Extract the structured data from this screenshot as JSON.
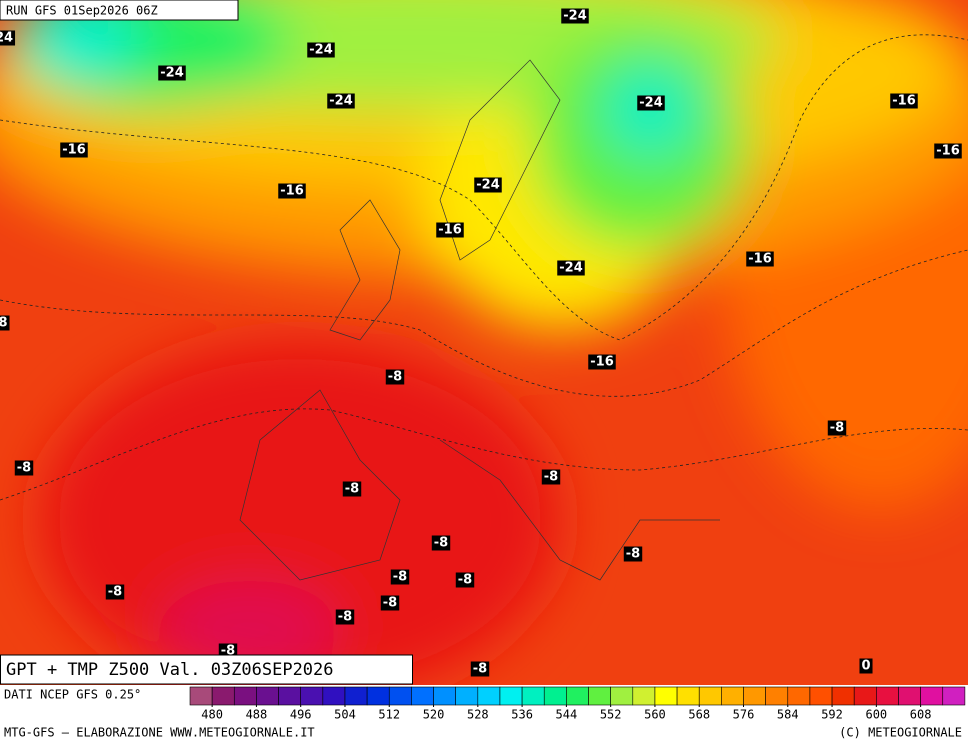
{
  "header": {
    "run": "RUN GFS 01Sep2026 06Z"
  },
  "map_title": "GPT + TMP Z500 Val. 03Z06SEP2026",
  "contour_labels": [
    "-24",
    "24",
    "-24",
    "-24",
    "-24",
    "-24",
    "-16",
    "-16",
    "-16",
    "-16",
    "-24",
    "-16",
    "-24",
    "-16",
    "8",
    "-16",
    "-8",
    "-8",
    "-8",
    "-8",
    "-8",
    "-8",
    "-8",
    "-8",
    "-8",
    "-8",
    "-8",
    "-8",
    "-8",
    "-8",
    "0"
  ],
  "legend": {
    "source": "DATI NCEP GFS 0.25°",
    "ticks": [
      480,
      488,
      496,
      504,
      512,
      520,
      528,
      536,
      544,
      552,
      560,
      568,
      576,
      584,
      592,
      600,
      608
    ],
    "start": 476,
    "step": 4,
    "colors": [
      "#a84a7a",
      "#8a1a6e",
      "#7a1080",
      "#6a1090",
      "#5a10a0",
      "#4a10b0",
      "#3010c0",
      "#1020d0",
      "#0030e0",
      "#0050f0",
      "#0070ff",
      "#0090ff",
      "#00b0ff",
      "#00d0ff",
      "#00f0f0",
      "#00f0c0",
      "#00f090",
      "#20f060",
      "#60f040",
      "#a0f040",
      "#d0f030",
      "#ffff00",
      "#ffe000",
      "#ffc800",
      "#ffb000",
      "#ff9800",
      "#ff8000",
      "#ff6800",
      "#ff5000",
      "#f03000",
      "#e81818",
      "#e81040",
      "#e01070",
      "#e010a0",
      "#d020c0"
    ]
  },
  "footer": {
    "left": "MTG-GFS — ELABORAZIONE WWW.METEOGIORNALE.IT",
    "right": "(C) METEOGIORNALE"
  }
}
